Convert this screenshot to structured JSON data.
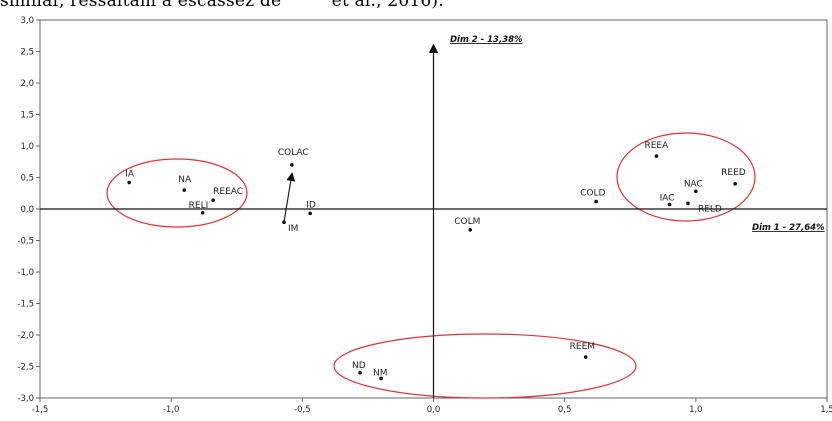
{
  "header_text": "similar, ressaltam a escassez de         et al., 2016).",
  "chart_data": {
    "type": "scatter",
    "xlabel": "Dim 1 - 27,64%",
    "ylabel": "Dim 2 - 13,38%",
    "xlim": [
      -1.5,
      1.5
    ],
    "ylim": [
      -3.0,
      3.0
    ],
    "xticks": [
      "-1,5",
      "-1,0",
      "-0,5",
      "0,0",
      "0,5",
      "1,0",
      "1,5"
    ],
    "yticks": [
      "3,0",
      "2,5",
      "2,0",
      "1,5",
      "1,0",
      "0,5",
      "0,0",
      "-0,5",
      "-1,0",
      "-1,5",
      "-2,0",
      "-2,5",
      "-3,0"
    ],
    "grid": false,
    "points": [
      {
        "label": "IA",
        "x": -1.16,
        "y": 0.42
      },
      {
        "label": "NA",
        "x": -0.95,
        "y": 0.3
      },
      {
        "label": "REEAC",
        "x": -0.84,
        "y": 0.14
      },
      {
        "label": "RELI",
        "x": -0.88,
        "y": -0.06
      },
      {
        "label": "COLAC",
        "x": -0.54,
        "y": 0.7
      },
      {
        "label": "IM",
        "x": -0.57,
        "y": -0.21
      },
      {
        "label": "ID",
        "x": -0.47,
        "y": -0.07
      },
      {
        "label": "COLM",
        "x": 0.14,
        "y": -0.33
      },
      {
        "label": "COLD",
        "x": 0.62,
        "y": 0.12
      },
      {
        "label": "REEA",
        "x": 0.85,
        "y": 0.84
      },
      {
        "label": "NAC",
        "x": 1.0,
        "y": 0.28
      },
      {
        "label": "IAC",
        "x": 0.9,
        "y": 0.07
      },
      {
        "label": "RELD",
        "x": 0.97,
        "y": 0.09
      },
      {
        "label": "REED",
        "x": 1.15,
        "y": 0.4
      },
      {
        "label": "REEM",
        "x": 0.58,
        "y": -2.35
      },
      {
        "label": "ND",
        "x": -0.28,
        "y": -2.6
      },
      {
        "label": "NM",
        "x": -0.2,
        "y": -2.69
      }
    ],
    "arrow": {
      "from": [
        -0.57,
        -0.21
      ],
      "to": [
        -0.54,
        0.55
      ]
    },
    "ellipse_color": "#e0313a"
  }
}
